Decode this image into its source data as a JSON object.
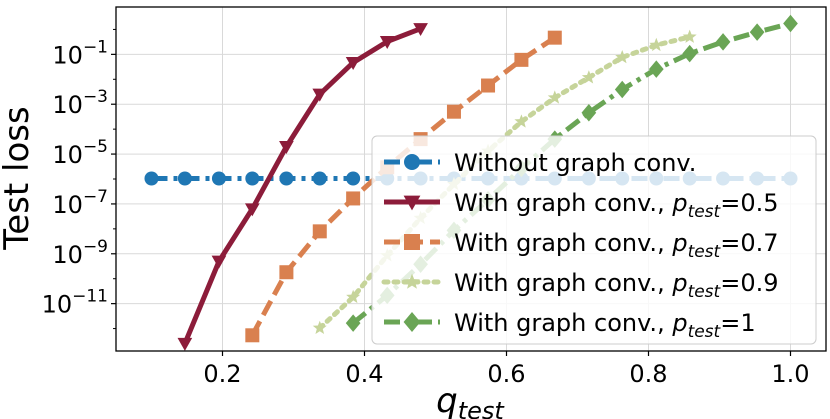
{
  "chart_data": {
    "type": "line",
    "title": "",
    "xlabel": "q",
    "xlabel_subscript": "test",
    "ylabel": "Test loss",
    "xscale": "linear",
    "yscale": "log",
    "xlim": [
      0.05,
      1.05
    ],
    "ylim_log10": [
      -12.9,
      0.9
    ],
    "grid": true,
    "legend_position": "center-right",
    "x_ticks": [
      {
        "value": 0.2,
        "label": "0.2"
      },
      {
        "value": 0.4,
        "label": "0.4"
      },
      {
        "value": 0.6,
        "label": "0.6"
      },
      {
        "value": 0.8,
        "label": "0.8"
      },
      {
        "value": 1.0,
        "label": "1.0"
      }
    ],
    "y_ticks": [
      {
        "exp": -1,
        "base": "10",
        "sup": "−1"
      },
      {
        "exp": -3,
        "base": "10",
        "sup": "−3"
      },
      {
        "exp": -5,
        "base": "10",
        "sup": "−5"
      },
      {
        "exp": -7,
        "base": "10",
        "sup": "−7"
      },
      {
        "exp": -9,
        "base": "10",
        "sup": "−9"
      },
      {
        "exp": -11,
        "base": "10",
        "sup": "−11"
      }
    ],
    "series": [
      {
        "name": "Without graph conv.",
        "legend_label": "Without graph conv.",
        "color": "#1f77b4",
        "line_style": "dashdot",
        "marker": "circle",
        "x": [
          0.1,
          0.147,
          0.195,
          0.242,
          0.29,
          0.337,
          0.384,
          0.432,
          0.479,
          0.526,
          0.574,
          0.621,
          0.668,
          0.716,
          0.763,
          0.811,
          0.858,
          0.905,
          0.953,
          1.0
        ],
        "log10_y": [
          -5.98,
          -5.98,
          -5.98,
          -5.98,
          -5.98,
          -5.98,
          -5.98,
          -5.98,
          -5.98,
          -5.98,
          -5.98,
          -5.98,
          -5.98,
          -5.98,
          -5.98,
          -5.98,
          -5.98,
          -5.98,
          -5.98,
          -5.98
        ]
      },
      {
        "name": "With graph conv., p_test=0.5",
        "legend_label": "With graph conv., ",
        "p_label": "p",
        "p_sub": "test",
        "p_value": "=0.5",
        "color": "#8c1c3a",
        "line_style": "solid",
        "marker": "triangle-down",
        "x": [
          0.147,
          0.195,
          0.242,
          0.29,
          0.337,
          0.384,
          0.432,
          0.479
        ],
        "log10_y": [
          -12.6,
          -9.3,
          -7.2,
          -4.7,
          -2.6,
          -1.33,
          -0.49,
          0.03
        ]
      },
      {
        "name": "With graph conv., p_test=0.7",
        "legend_label": "With graph conv., ",
        "p_label": "p",
        "p_sub": "test",
        "p_value": "=0.7",
        "color": "#d9804f",
        "line_style": "dashed",
        "marker": "square",
        "x": [
          0.242,
          0.29,
          0.337,
          0.384,
          0.432,
          0.479,
          0.526,
          0.574,
          0.621,
          0.668
        ],
        "log10_y": [
          -12.27,
          -9.74,
          -8.1,
          -6.78,
          -5.53,
          -4.4,
          -3.3,
          -2.25,
          -1.22,
          -0.33
        ]
      },
      {
        "name": "With graph conv., p_test=0.9",
        "legend_label": "With graph conv., ",
        "p_label": "p",
        "p_sub": "test",
        "p_value": "=0.9",
        "color": "#c6d49a",
        "line_style": "dotted",
        "marker": "star",
        "x": [
          0.337,
          0.384,
          0.432,
          0.479,
          0.526,
          0.574,
          0.621,
          0.668,
          0.716,
          0.763,
          0.811,
          0.858
        ],
        "log10_y": [
          -11.98,
          -10.74,
          -9.07,
          -7.57,
          -6.21,
          -4.88,
          -3.7,
          -2.74,
          -1.93,
          -1.12,
          -0.63,
          -0.3
        ]
      },
      {
        "name": "With graph conv., p_test=1",
        "legend_label": "With graph conv., ",
        "p_label": "p",
        "p_sub": "test",
        "p_value": "=1",
        "color": "#6aa555",
        "line_style": "dashdot",
        "marker": "diamond",
        "x": [
          0.384,
          0.432,
          0.479,
          0.526,
          0.574,
          0.621,
          0.668,
          0.716,
          0.763,
          0.811,
          0.858,
          0.905,
          0.953,
          1.0
        ],
        "log10_y": [
          -11.78,
          -10.67,
          -9.42,
          -8.06,
          -6.83,
          -5.58,
          -4.4,
          -3.34,
          -2.41,
          -1.59,
          -0.97,
          -0.5,
          -0.11,
          0.24
        ]
      }
    ]
  }
}
